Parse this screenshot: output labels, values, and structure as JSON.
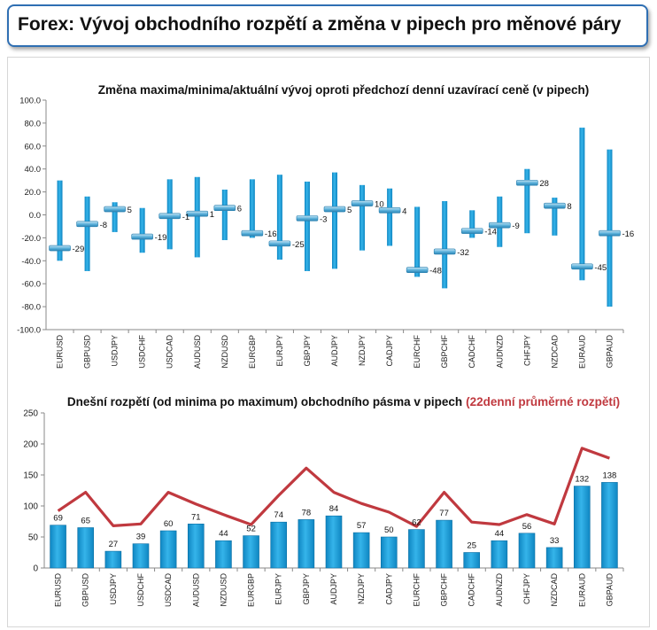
{
  "header": {
    "title": "Forex: Vývoj obchodního rozpětí a změna v pipech pro měnové páry"
  },
  "chart_data": [
    {
      "type": "bar",
      "title": "Změna maxima/minima/aktuální vývoj oproti předchozí denní uzavírací ceně (v pipech)",
      "ylim": [
        -100,
        100
      ],
      "yticks": [
        "100.0",
        "80.0",
        "60.0",
        "40.0",
        "20.0",
        "0.0",
        "-20.0",
        "-40.0",
        "-60.0",
        "-80.0",
        "-100.0"
      ],
      "grid": false,
      "categories": [
        "EURUSD",
        "GBPUSD",
        "USDJPY",
        "USDCHF",
        "USDCAD",
        "AUDUSD",
        "NZDUSD",
        "EURGBP",
        "EURJPY",
        "GBPJPY",
        "AUDJPY",
        "NZDJPY",
        "CADJPY",
        "EURCHF",
        "GBPCHF",
        "CADCHF",
        "AUDNZD",
        "CHFJPY",
        "NZDCAD",
        "EURAUD",
        "GBPAUD"
      ],
      "series": [
        {
          "role": "high",
          "values": [
            30,
            16,
            11,
            6,
            31,
            33,
            22,
            31,
            35,
            29,
            37,
            26,
            23,
            7,
            12,
            4,
            16,
            40,
            15,
            76,
            57
          ]
        },
        {
          "role": "low",
          "values": [
            -40,
            -49,
            -15,
            -33,
            -30,
            -37,
            -22,
            -20,
            -39,
            -49,
            -47,
            -31,
            -27,
            -54,
            -64,
            -20,
            -28,
            -16,
            -18,
            -57,
            -80
          ]
        },
        {
          "role": "current",
          "values": [
            -29,
            -8,
            5,
            -19,
            -1,
            1,
            6,
            -16,
            -25,
            -3,
            5,
            10,
            4,
            -48,
            -32,
            -14,
            -9,
            28,
            8,
            -45,
            -16
          ]
        }
      ],
      "current_labels": [
        "-29",
        "-8",
        "5",
        "-19",
        "-1",
        "1",
        "6",
        "-16",
        "-25",
        "-3",
        "5",
        "10",
        "4",
        "-48",
        "-32",
        "-14",
        "-9",
        "28",
        "8",
        "-45",
        "-16"
      ],
      "colors": {
        "range_bar": "#1a9ad6",
        "marker": "#5fb3dc"
      }
    },
    {
      "type": "bar",
      "title": "Dnešní rozpětí (od minima po maximum) obchodního pásma v pipech",
      "title_highlight": "(22denní průměrné rozpětí)",
      "ylim": [
        0,
        250
      ],
      "yticks": [
        "250",
        "200",
        "150",
        "100",
        "50",
        "0"
      ],
      "grid": false,
      "categories": [
        "EURUSD",
        "GBPUSD",
        "USDJPY",
        "USDCHF",
        "USDCAD",
        "AUDUSD",
        "NZDUSD",
        "EURGBP",
        "EURJPY",
        "GBPJPY",
        "AUDJPY",
        "NZDJPY",
        "CADJPY",
        "EURCHF",
        "GBPCHF",
        "CADCHF",
        "AUDNZD",
        "CHFJPY",
        "NZDCAD",
        "EURAUD",
        "GBPAUD"
      ],
      "series": [
        {
          "type": "bar",
          "values": [
            69,
            65,
            27,
            39,
            60,
            71,
            44,
            52,
            74,
            78,
            84,
            57,
            50,
            62,
            77,
            25,
            44,
            56,
            33,
            132,
            138
          ]
        },
        {
          "type": "line",
          "values": [
            92,
            122,
            68,
            71,
            122,
            103,
            86,
            70,
            117,
            161,
            122,
            104,
            90,
            67,
            122,
            74,
            70,
            86,
            71,
            193,
            177
          ]
        }
      ],
      "bar_labels": [
        "69",
        "65",
        "27",
        "39",
        "60",
        "71",
        "44",
        "52",
        "74",
        "78",
        "84",
        "57",
        "50",
        "62",
        "77",
        "25",
        "44",
        "56",
        "33",
        "132",
        "138"
      ],
      "colors": {
        "bar": "#1a9ad6",
        "line": "#c0393f",
        "title_highlight": "#c0393f"
      }
    }
  ]
}
